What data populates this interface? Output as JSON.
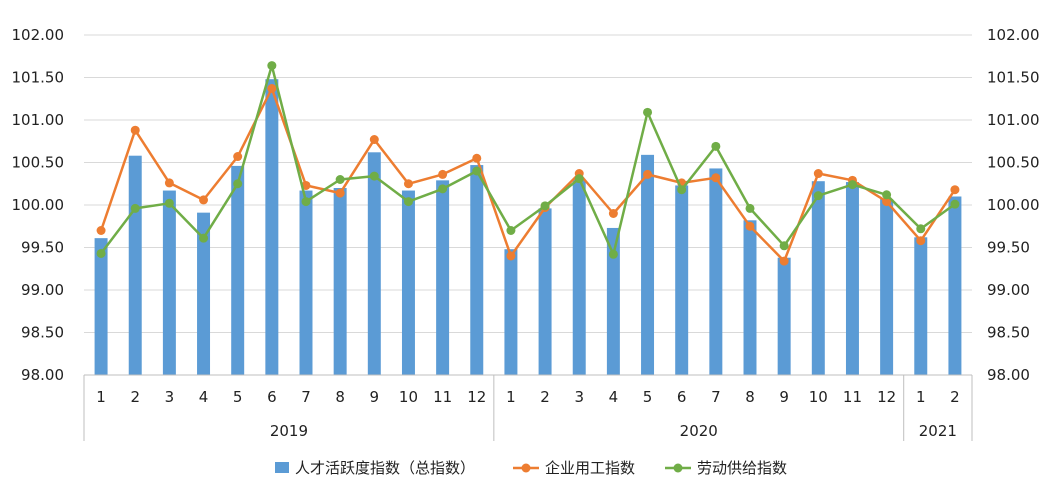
{
  "chart_data": {
    "type": "bar",
    "title": "",
    "xlabel": "",
    "ylabel": "",
    "ylim": [
      98.0,
      102.0
    ],
    "yticks": [
      "98.00",
      "98.50",
      "99.00",
      "99.50",
      "100.00",
      "100.50",
      "101.00",
      "101.50",
      "102.00"
    ],
    "secondary_yticks": [
      "98.00",
      "98.50",
      "99.00",
      "99.50",
      "100.00",
      "100.50",
      "101.00",
      "101.50",
      "102.00"
    ],
    "grid": true,
    "legend_position": "bottom",
    "groups": [
      {
        "label": "2019",
        "categories": [
          "1",
          "2",
          "3",
          "4",
          "5",
          "6",
          "7",
          "8",
          "9",
          "10",
          "11",
          "12"
        ]
      },
      {
        "label": "2020",
        "categories": [
          "1",
          "2",
          "3",
          "4",
          "5",
          "6",
          "7",
          "8",
          "9",
          "10",
          "11",
          "12"
        ]
      },
      {
        "label": "2021",
        "categories": [
          "1",
          "2"
        ]
      }
    ],
    "series": [
      {
        "name": "人才活跃度指数（总指数）",
        "type": "bar",
        "color": "#5b9bd5",
        "values": [
          99.61,
          100.58,
          100.17,
          99.91,
          100.46,
          101.48,
          100.17,
          100.2,
          100.62,
          100.17,
          100.29,
          100.47,
          99.48,
          99.96,
          100.3,
          99.73,
          100.59,
          100.23,
          100.43,
          99.82,
          99.38,
          100.28,
          100.27,
          100.07,
          99.62,
          100.1
        ]
      },
      {
        "name": "企业用工指数",
        "type": "line",
        "color": "#ed7d31",
        "values": [
          99.7,
          100.88,
          100.26,
          100.06,
          100.57,
          101.37,
          100.23,
          100.14,
          100.77,
          100.25,
          100.36,
          100.55,
          99.4,
          99.97,
          100.37,
          99.9,
          100.36,
          100.26,
          100.32,
          99.75,
          99.34,
          100.37,
          100.29,
          100.04,
          99.58,
          100.18
        ]
      },
      {
        "name": "劳动供给指数",
        "type": "line",
        "color": "#70ad47",
        "values": [
          99.43,
          99.96,
          100.02,
          99.61,
          100.25,
          101.64,
          100.04,
          100.3,
          100.34,
          100.04,
          100.19,
          100.4,
          99.7,
          99.99,
          100.31,
          99.42,
          101.09,
          100.18,
          100.69,
          99.96,
          99.52,
          100.11,
          100.24,
          100.12,
          99.72,
          100.01
        ]
      }
    ]
  }
}
